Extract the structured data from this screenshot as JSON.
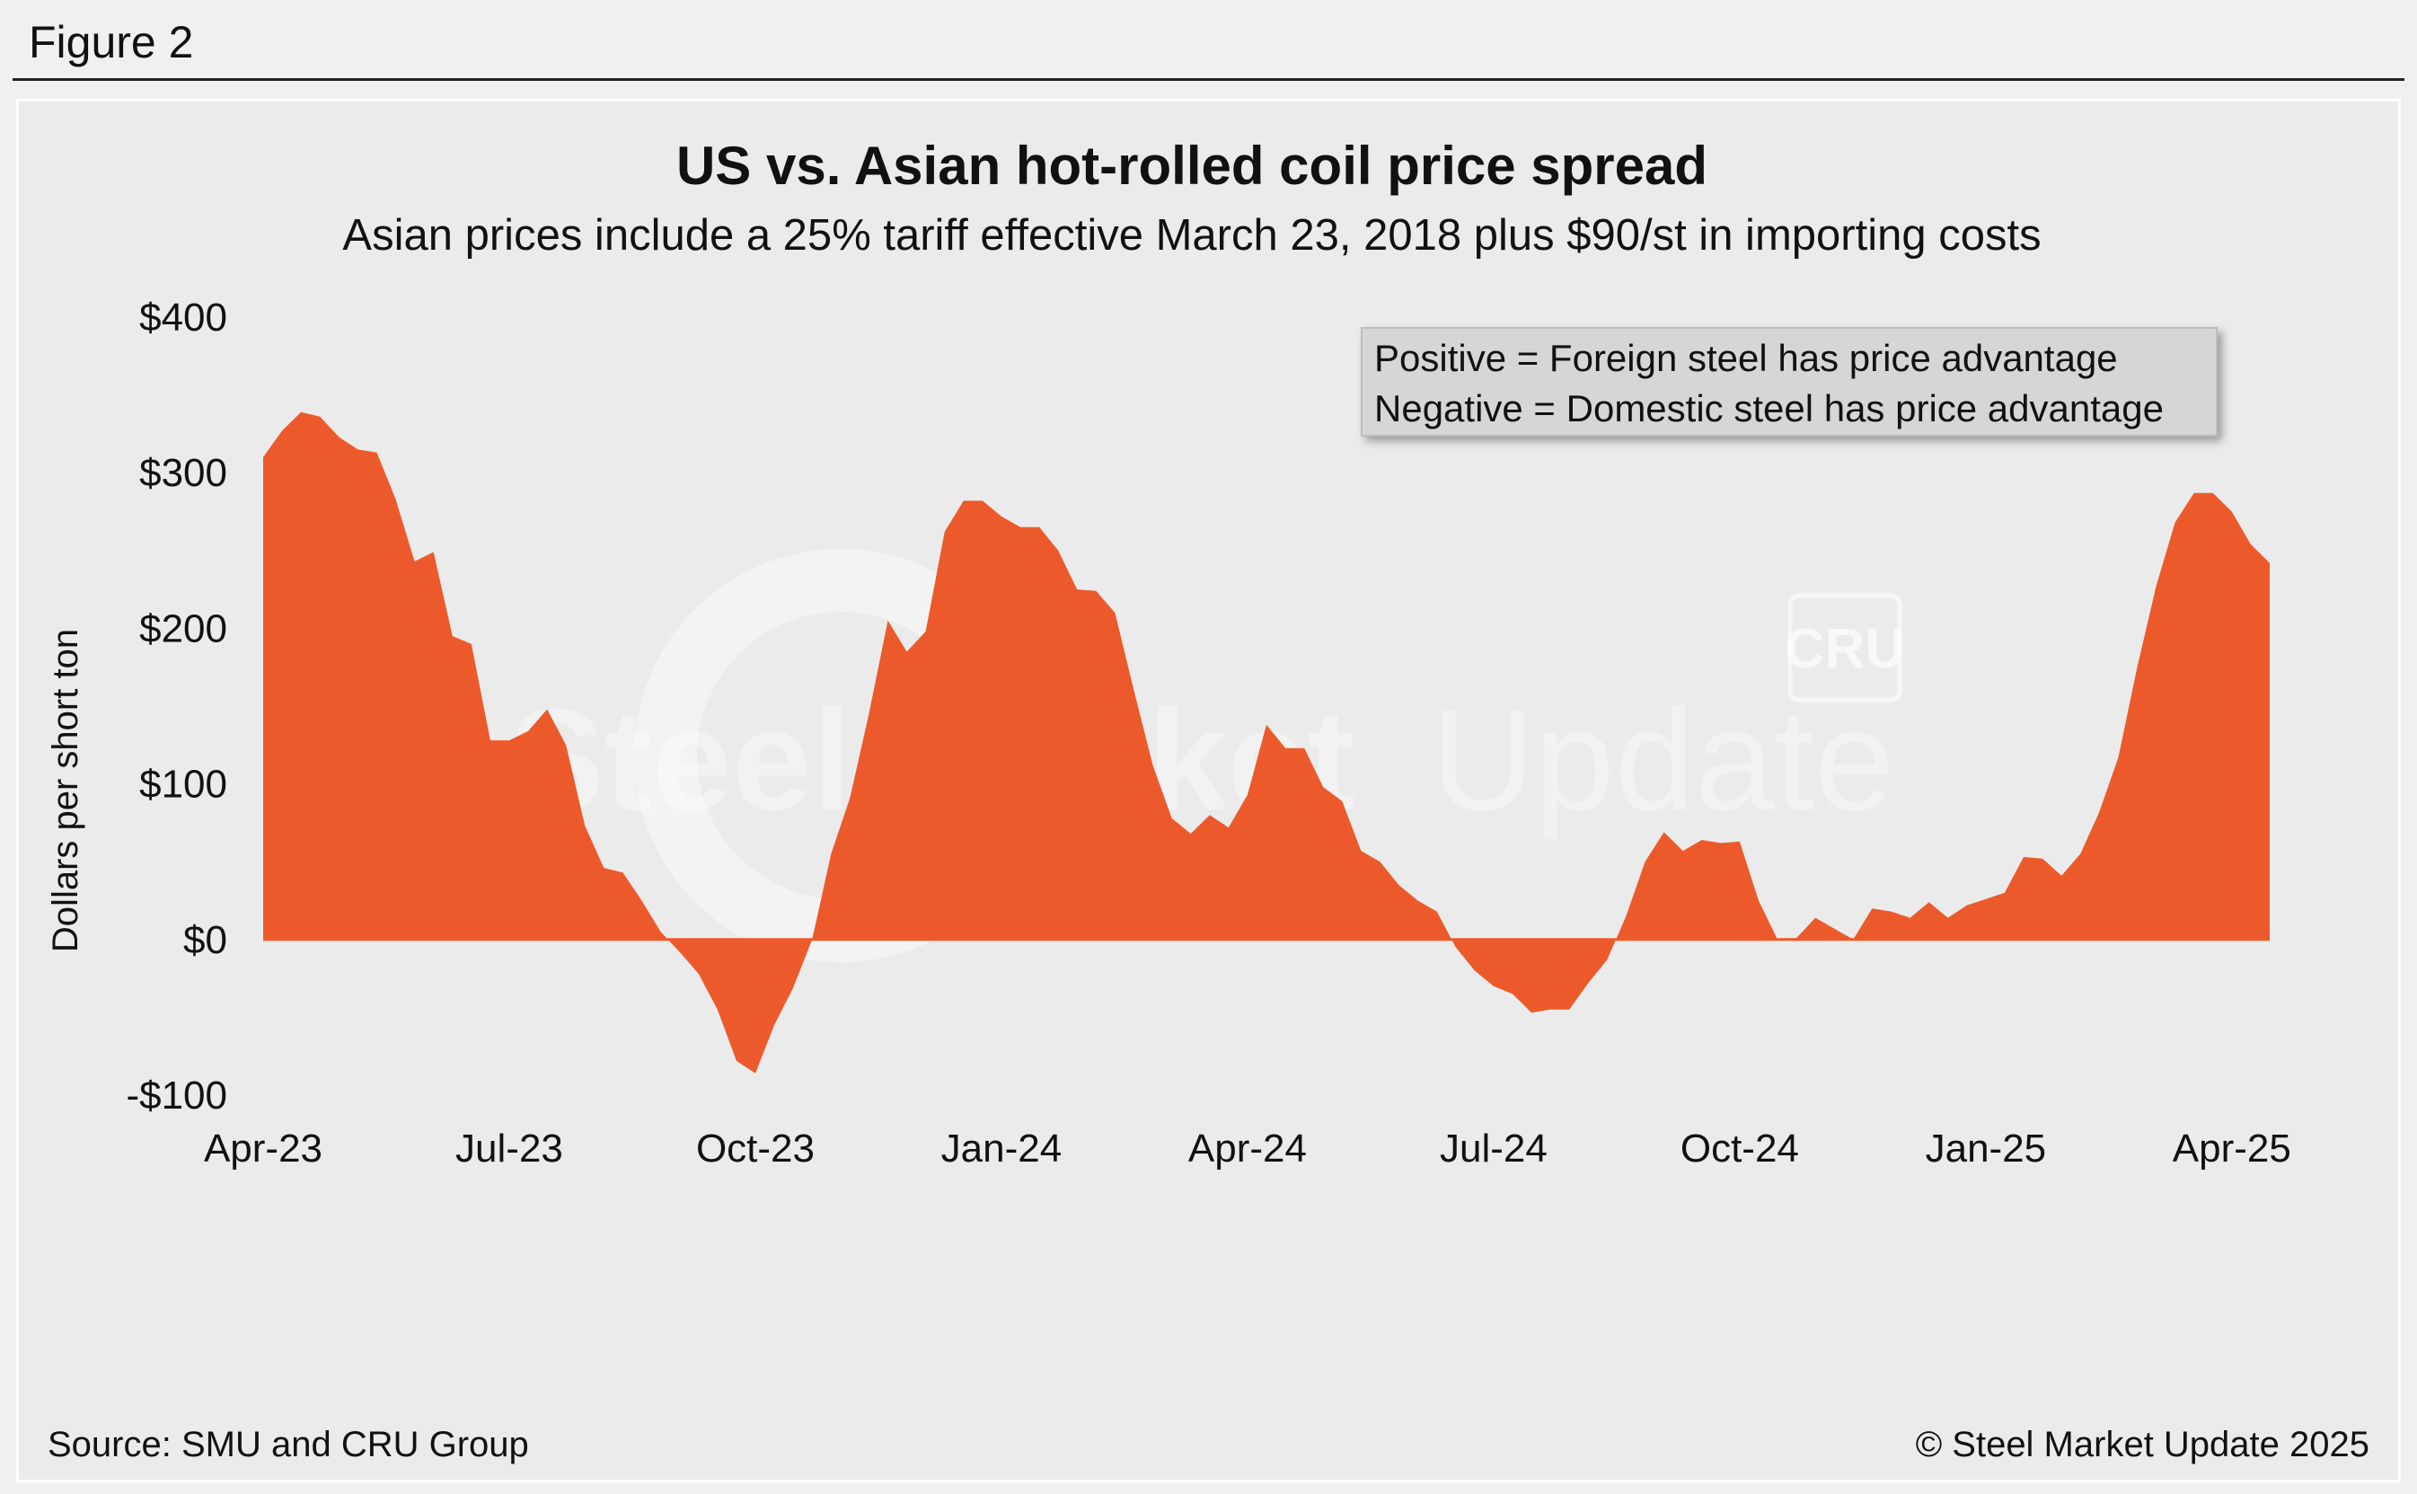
{
  "figure_label": "Figure 2",
  "watermark": {
    "brand": "Steel Market Update",
    "bold_part": "Steel Market",
    "light_part": "Update",
    "logo": "CRU"
  },
  "chart_data": {
    "type": "area",
    "title": "US vs. Asian hot-rolled coil price spread",
    "subtitle": "Asian prices include a 25% tariff effective March 23, 2018 plus $90/st in importing costs",
    "ylabel": "Dollars per short ton",
    "xlabel": "",
    "ylim": [
      -100,
      400
    ],
    "yticks": [
      400,
      300,
      200,
      100,
      0,
      -100
    ],
    "ytick_labels": [
      "$400",
      "$300",
      "$200",
      "$100",
      "$0",
      "-$100"
    ],
    "xtick_labels": [
      "Apr-23",
      "Jul-23",
      "Oct-23",
      "Jan-24",
      "Apr-24",
      "Jul-24",
      "Oct-24",
      "Jan-25",
      "Apr-25"
    ],
    "xtick_indices": [
      0,
      13,
      26,
      39,
      52,
      65,
      78,
      91,
      104
    ],
    "series": [
      {
        "name": "US vs. Asian HRC price spread",
        "color": "#ec5a2b",
        "frequency": "weekly",
        "values": [
          310,
          327,
          339,
          336,
          323,
          315,
          313,
          283,
          243,
          249,
          195,
          190,
          128,
          128,
          134,
          148,
          125,
          73,
          46,
          43,
          25,
          5,
          -8,
          -22,
          -45,
          -78,
          -86,
          -55,
          -31,
          0,
          55,
          91,
          145,
          205,
          185,
          198,
          262,
          282,
          282,
          272,
          265,
          265,
          250,
          225,
          224,
          210,
          160,
          112,
          78,
          68,
          80,
          72,
          93,
          138,
          123,
          123,
          98,
          89,
          57,
          50,
          35,
          25,
          18,
          -5,
          -20,
          -30,
          -35,
          -47,
          -45,
          -45,
          -28,
          -13,
          15,
          50,
          69,
          57,
          64,
          62,
          63,
          25,
          0,
          1,
          14,
          7,
          0,
          20,
          18,
          14,
          24,
          14,
          22,
          26,
          30,
          53,
          52,
          41,
          55,
          82,
          117,
          175,
          227,
          268,
          287,
          287,
          275,
          254,
          242
        ]
      }
    ],
    "legend": {
      "placement": "top-right",
      "lines": [
        "Positive = Foreign steel has price advantage",
        "Negative = Domestic steel has price advantage"
      ]
    },
    "grid": false
  },
  "footer": {
    "source": "Source: SMU and CRU Group",
    "copyright": "© Steel Market Update 2025"
  }
}
